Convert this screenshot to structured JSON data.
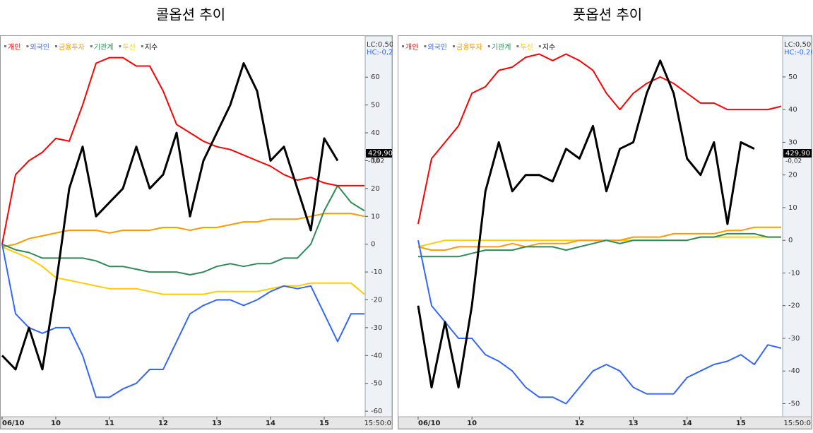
{
  "chart_data": [
    {
      "type": "line",
      "title": "콜옵션 추이",
      "categories": [
        "06/10",
        null,
        null,
        null,
        "10",
        null,
        null,
        null,
        "11",
        null,
        null,
        null,
        "12",
        null,
        null,
        null,
        "13",
        null,
        null,
        null,
        "14",
        null,
        null,
        null,
        "15",
        null,
        null,
        null
      ],
      "x_end_label": "15:50:0",
      "ylim": [
        -62,
        73
      ],
      "yticks": [
        -60,
        -50,
        -40,
        -30,
        -20,
        -10,
        0,
        10,
        20,
        30,
        40,
        50,
        60
      ],
      "lc_label": "LC:0,50",
      "hc_label": "HC:-0,20",
      "current_label": "429,90",
      "current_change": "-0,02",
      "series": [
        {
          "name": "개인",
          "color": "#ff0000",
          "values": [
            0,
            25,
            30,
            33,
            38,
            37,
            50,
            65,
            67,
            67,
            64,
            64,
            55,
            43,
            40,
            37,
            35,
            34,
            32,
            30,
            28,
            25,
            23,
            24,
            22,
            21,
            21,
            21
          ]
        },
        {
          "name": "외국인",
          "color": "#3366ff",
          "values": [
            0,
            -25,
            -30,
            -32,
            -30,
            -30,
            -40,
            -55,
            -55,
            -52,
            -50,
            -45,
            -45,
            -35,
            -25,
            -22,
            -20,
            -20,
            -22,
            -20,
            -17,
            -15,
            -16,
            -15,
            -25,
            -35,
            -25,
            -25
          ]
        },
        {
          "name": "금융투자",
          "color": "#ff9900",
          "values": [
            -1,
            0,
            2,
            3,
            4,
            5,
            5,
            5,
            4,
            5,
            5,
            5,
            6,
            6,
            5,
            6,
            6,
            7,
            8,
            8,
            9,
            9,
            9,
            10,
            11,
            11,
            11,
            10
          ]
        },
        {
          "name": "기관계",
          "color": "#2e8b57",
          "values": [
            0,
            -2,
            -3,
            -5,
            -5,
            -5,
            -5,
            -6,
            -8,
            -8,
            -9,
            -10,
            -10,
            -10,
            -11,
            -10,
            -8,
            -7,
            -8,
            -7,
            -7,
            -5,
            -5,
            0,
            12,
            21,
            15,
            12
          ]
        },
        {
          "name": "투신",
          "color": "#ffcc00",
          "values": [
            -1,
            -3,
            -5,
            -8,
            -12,
            -13,
            -14,
            -15,
            -16,
            -16,
            -16,
            -17,
            -18,
            -18,
            -18,
            -18,
            -17,
            -17,
            -17,
            -17,
            -16,
            -15,
            -15,
            -14,
            -14,
            -14,
            -14,
            -18
          ]
        },
        {
          "name": "지수",
          "color": "#000000",
          "values": [
            -40,
            -45,
            -30,
            -45,
            -15,
            20,
            35,
            10,
            15,
            20,
            35,
            20,
            25,
            40,
            10,
            30,
            40,
            50,
            65,
            55,
            30,
            35,
            20,
            5,
            38,
            30,
            null,
            null
          ]
        }
      ]
    },
    {
      "type": "line",
      "title": "풋옵션 추이",
      "categories": [
        "06/10",
        null,
        null,
        null,
        "10",
        null,
        null,
        null,
        null,
        null,
        null,
        null,
        "12",
        null,
        null,
        null,
        "13",
        null,
        null,
        null,
        "14",
        null,
        null,
        null,
        "15",
        null,
        null,
        null
      ],
      "x_end_label": "15:50:0",
      "ylim": [
        -54,
        61
      ],
      "yticks": [
        -50,
        -40,
        -30,
        -20,
        -10,
        0,
        10,
        20,
        30,
        40,
        50
      ],
      "lc_label": "LC:0,50",
      "hc_label": "HC:-0,20",
      "current_label": "429,90",
      "current_change": "-0,02",
      "series": [
        {
          "name": "개인",
          "color": "#ff0000",
          "values": [
            5,
            25,
            30,
            35,
            45,
            47,
            52,
            53,
            56,
            57,
            55,
            57,
            55,
            52,
            45,
            40,
            45,
            48,
            50,
            48,
            45,
            42,
            42,
            40,
            40,
            40,
            40,
            41
          ]
        },
        {
          "name": "외국인",
          "color": "#3366ff",
          "values": [
            0,
            -20,
            -25,
            -30,
            -30,
            -35,
            -37,
            -40,
            -45,
            -48,
            -48,
            -50,
            -45,
            -40,
            -38,
            -40,
            -45,
            -47,
            -47,
            -47,
            -42,
            -40,
            -38,
            -37,
            -35,
            -38,
            -32,
            -33
          ]
        },
        {
          "name": "금융투자",
          "color": "#ff9900",
          "values": [
            -2,
            -3,
            -3,
            -2,
            -2,
            -2,
            -2,
            -1,
            -2,
            -1,
            -1,
            -1,
            0,
            0,
            0,
            0,
            1,
            1,
            1,
            2,
            2,
            2,
            2,
            3,
            3,
            4,
            4,
            4
          ]
        },
        {
          "name": "기관계",
          "color": "#2e8b57",
          "values": [
            -5,
            -5,
            -5,
            -5,
            -4,
            -3,
            -3,
            -3,
            -2,
            -2,
            -2,
            -3,
            -2,
            -1,
            0,
            -1,
            0,
            0,
            0,
            0,
            0,
            1,
            1,
            2,
            2,
            2,
            1,
            1
          ]
        },
        {
          "name": "투신",
          "color": "#ffcc00",
          "values": [
            -2,
            -1,
            0,
            0,
            0,
            0,
            0,
            0,
            0,
            0,
            0,
            0,
            0,
            0,
            0,
            0,
            0,
            0,
            0,
            0,
            0,
            1,
            1,
            1,
            1,
            1,
            1,
            1
          ]
        },
        {
          "name": "지수",
          "color": "#000000",
          "values": [
            -20,
            -45,
            -25,
            -45,
            -20,
            15,
            30,
            15,
            20,
            20,
            18,
            28,
            25,
            35,
            15,
            28,
            30,
            45,
            55,
            45,
            25,
            20,
            30,
            5,
            30,
            28,
            null,
            null
          ]
        }
      ]
    }
  ]
}
